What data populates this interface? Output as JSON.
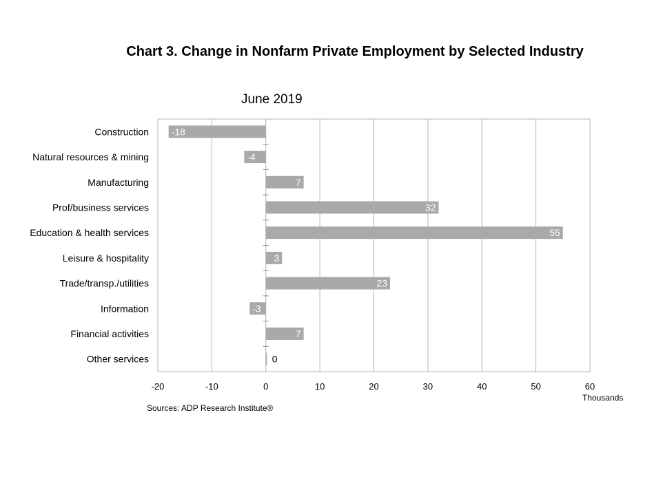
{
  "chart_data": {
    "type": "bar",
    "orientation": "horizontal",
    "title": "Chart 3. Change in Nonfarm Private Employment by Selected Industry",
    "subtitle": "June 2019",
    "xlabel": "Thousands",
    "source": "Sources: ADP Research Institute®",
    "categories": [
      "Construction",
      "Natural resources & mining",
      "Manufacturing",
      "Prof/business services",
      "Education & health services",
      "Leisure & hospitality",
      "Trade/transp./utilities",
      "Information",
      "Financial activities",
      "Other services"
    ],
    "values": [
      -18,
      -4,
      7,
      32,
      55,
      3,
      23,
      -3,
      7,
      0
    ],
    "xlim": [
      -20,
      60
    ],
    "xticks": [
      -20,
      -10,
      0,
      10,
      20,
      30,
      40,
      50,
      60
    ],
    "grid": true,
    "legend": "none",
    "colors": {
      "bar": "#a9a9a9",
      "grid": "#b4b4b4",
      "label": "#ffffff"
    }
  }
}
